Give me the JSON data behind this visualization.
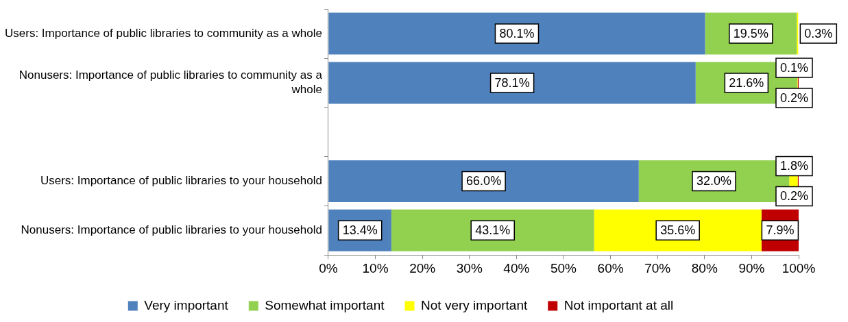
{
  "chart_data": {
    "type": "bar",
    "orientation": "horizontal",
    "stacked": true,
    "categories": [
      "Users: Importance of public libraries to community as a whole",
      "Nonusers: Importance of public libraries to community as a whole",
      null,
      "Users: Importance of public libraries to your household",
      "Nonusers: Importance of public libraries to your household"
    ],
    "series": [
      {
        "name": "Very important",
        "color": "#4f81bd",
        "values": [
          80.1,
          78.1,
          null,
          66.0,
          13.4
        ],
        "value_labels": [
          "80.1%",
          "78.1%",
          null,
          "66.0%",
          "13.4%"
        ]
      },
      {
        "name": "Somewhat important",
        "color": "#92d050",
        "values": [
          19.5,
          21.6,
          null,
          32.0,
          43.1
        ],
        "value_labels": [
          "19.5%",
          "21.6%",
          null,
          "32.0%",
          "43.1%"
        ]
      },
      {
        "name": "Not very important",
        "color": "#ffff00",
        "values": [
          0.3,
          0.1,
          null,
          1.8,
          35.6
        ],
        "value_labels": [
          "0.3%",
          "0.1%",
          null,
          "1.8%",
          "35.6%"
        ]
      },
      {
        "name": "Not important at all",
        "color": "#c00000",
        "values": [
          0,
          0.2,
          null,
          0.2,
          7.9
        ],
        "value_labels": [
          null,
          "0.2%",
          null,
          "0.2%",
          "7.9%"
        ]
      }
    ],
    "xlim": [
      0,
      100
    ],
    "xticks": [
      {
        "value": 0,
        "label": "0%"
      },
      {
        "value": 10,
        "label": "10%"
      },
      {
        "value": 20,
        "label": "20%"
      },
      {
        "value": 30,
        "label": "30%"
      },
      {
        "value": 40,
        "label": "40%"
      },
      {
        "value": 50,
        "label": "50%"
      },
      {
        "value": 60,
        "label": "60%"
      },
      {
        "value": 70,
        "label": "70%"
      },
      {
        "value": 80,
        "label": "80%"
      },
      {
        "value": 90,
        "label": "90%"
      },
      {
        "value": 100,
        "label": "100%"
      }
    ],
    "grid": false,
    "legend": "bottom"
  }
}
